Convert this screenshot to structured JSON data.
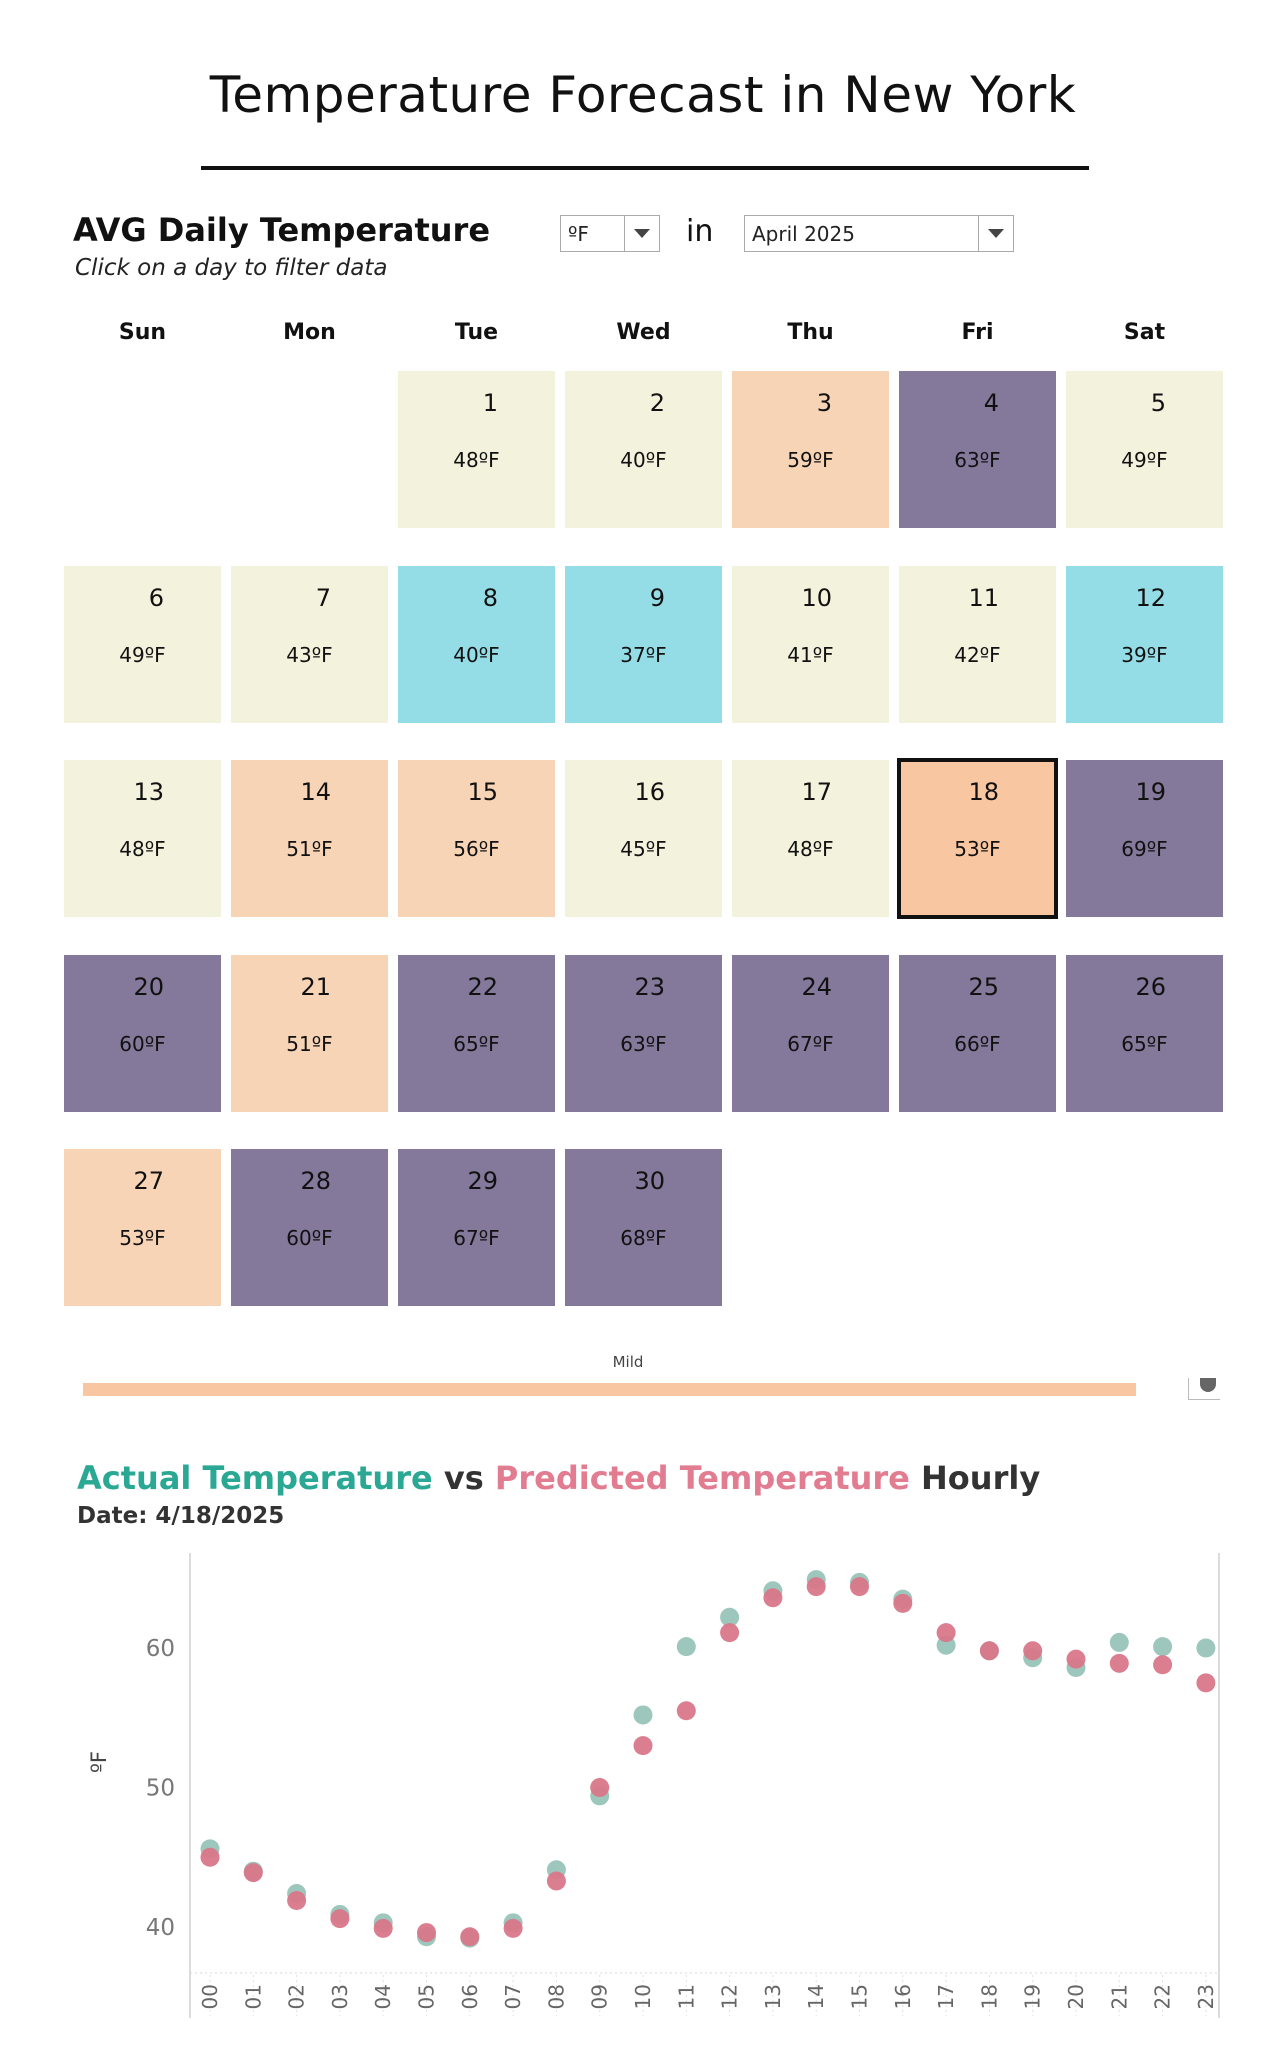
{
  "title": "Temperature Forecast in New York",
  "calendar": {
    "heading": "AVG Daily Temperature",
    "subtitle": "Click on a day to filter data",
    "in_label": "in",
    "unit_value": "ºF",
    "month_value": "April 2025",
    "weekdays": [
      "Sun",
      "Mon",
      "Tue",
      "Wed",
      "Thu",
      "Fri",
      "Sat"
    ],
    "start_weekday": 2,
    "selected_day": 18,
    "colors": {
      "cool": "#f3f2dc",
      "mild": "#f8d4b6",
      "warm": "#84789b",
      "cold": "#95dde6",
      "selected": "#f8c6a1"
    },
    "days": [
      {
        "day": "1",
        "temp": "48ºF",
        "band": "cool"
      },
      {
        "day": "2",
        "temp": "40ºF",
        "band": "cool"
      },
      {
        "day": "3",
        "temp": "59ºF",
        "band": "mild"
      },
      {
        "day": "4",
        "temp": "63ºF",
        "band": "warm"
      },
      {
        "day": "5",
        "temp": "49ºF",
        "band": "cool"
      },
      {
        "day": "6",
        "temp": "49ºF",
        "band": "cool"
      },
      {
        "day": "7",
        "temp": "43ºF",
        "band": "cool"
      },
      {
        "day": "8",
        "temp": "40ºF",
        "band": "cold"
      },
      {
        "day": "9",
        "temp": "37ºF",
        "band": "cold"
      },
      {
        "day": "10",
        "temp": "41ºF",
        "band": "cool"
      },
      {
        "day": "11",
        "temp": "42ºF",
        "band": "cool"
      },
      {
        "day": "12",
        "temp": "39ºF",
        "band": "cold"
      },
      {
        "day": "13",
        "temp": "48ºF",
        "band": "cool"
      },
      {
        "day": "14",
        "temp": "51ºF",
        "band": "mild"
      },
      {
        "day": "15",
        "temp": "56ºF",
        "band": "mild"
      },
      {
        "day": "16",
        "temp": "45ºF",
        "band": "cool"
      },
      {
        "day": "17",
        "temp": "48ºF",
        "band": "cool"
      },
      {
        "day": "18",
        "temp": "53ºF",
        "band": "selected"
      },
      {
        "day": "19",
        "temp": "69ºF",
        "band": "warm"
      },
      {
        "day": "20",
        "temp": "60ºF",
        "band": "warm"
      },
      {
        "day": "21",
        "temp": "51ºF",
        "band": "mild"
      },
      {
        "day": "22",
        "temp": "65ºF",
        "band": "warm"
      },
      {
        "day": "23",
        "temp": "63ºF",
        "band": "warm"
      },
      {
        "day": "24",
        "temp": "67ºF",
        "band": "warm"
      },
      {
        "day": "25",
        "temp": "66ºF",
        "band": "warm"
      },
      {
        "day": "26",
        "temp": "65ºF",
        "band": "warm"
      },
      {
        "day": "27",
        "temp": "53ºF",
        "band": "mild"
      },
      {
        "day": "28",
        "temp": "60ºF",
        "band": "warm"
      },
      {
        "day": "29",
        "temp": "67ºF",
        "band": "warm"
      },
      {
        "day": "30",
        "temp": "68ºF",
        "band": "warm"
      }
    ]
  },
  "legend": {
    "label": "Mild",
    "color": "#f8c6a1",
    "level": 0.94
  },
  "chart": {
    "title_actual": "Actual Temperature",
    "title_vs": " vs ",
    "title_predicted": "Predicted Temperature",
    "title_hourly": " Hourly",
    "date_label": "Date: 4/18/2025",
    "actual_color": "#2aa894",
    "predicted_color": "#e27d91"
  },
  "chart_data": {
    "type": "scatter",
    "title": "Actual Temperature vs Predicted Temperature Hourly",
    "subtitle": "Date: 4/18/2025",
    "xlabel": "",
    "ylabel": "ºF",
    "x": [
      "00",
      "01",
      "02",
      "03",
      "04",
      "05",
      "06",
      "07",
      "08",
      "09",
      "10",
      "11",
      "12",
      "13",
      "14",
      "15",
      "16",
      "17",
      "18",
      "19",
      "20",
      "21",
      "22",
      "23"
    ],
    "yticks": [
      40,
      50,
      60
    ],
    "ylim": [
      36.8,
      68.5
    ],
    "grid": false,
    "series": [
      {
        "name": "Actual Temperature",
        "color": "#98c4b8",
        "values": [
          45.6,
          44.0,
          42.4,
          40.9,
          40.3,
          39.3,
          39.2,
          40.3,
          44.1,
          49.4,
          55.2,
          60.1,
          62.2,
          64.1,
          64.9,
          64.7,
          63.5,
          60.2,
          59.8,
          59.3,
          58.6,
          60.4,
          60.1,
          60.0
        ]
      },
      {
        "name": "Predicted Temperature",
        "color": "#d97789",
        "values": [
          45.0,
          43.9,
          41.9,
          40.6,
          39.9,
          39.6,
          39.3,
          39.9,
          43.3,
          50.0,
          53.0,
          55.5,
          61.1,
          63.6,
          64.4,
          64.4,
          63.2,
          61.1,
          59.8,
          59.8,
          59.2,
          58.9,
          58.8,
          57.5
        ]
      }
    ]
  }
}
